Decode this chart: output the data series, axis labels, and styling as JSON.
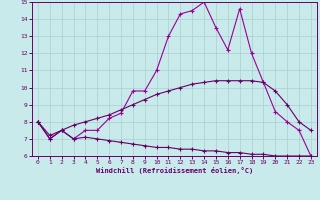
{
  "xlabel": "Windchill (Refroidissement éolien,°C)",
  "xlim": [
    -0.5,
    23.5
  ],
  "ylim": [
    6,
    15
  ],
  "xticks": [
    0,
    1,
    2,
    3,
    4,
    5,
    6,
    7,
    8,
    9,
    10,
    11,
    12,
    13,
    14,
    15,
    16,
    17,
    18,
    19,
    20,
    21,
    22,
    23
  ],
  "yticks": [
    6,
    7,
    8,
    9,
    10,
    11,
    12,
    13,
    14,
    15
  ],
  "background_color": "#c8eaea",
  "grid_color": "#aacfcf",
  "line_color": "#990099",
  "line_color2": "#660066",
  "line1_x": [
    0,
    1,
    2,
    3,
    4,
    5,
    6,
    7,
    8,
    9,
    10,
    11,
    12,
    13,
    14,
    15,
    16,
    17,
    18,
    19,
    20,
    21,
    22,
    23
  ],
  "line1_y": [
    8.0,
    7.0,
    7.5,
    7.0,
    7.5,
    7.5,
    8.2,
    8.5,
    9.8,
    9.8,
    11.0,
    13.0,
    14.3,
    14.5,
    15.0,
    13.5,
    12.2,
    14.6,
    12.0,
    10.3,
    8.6,
    8.0,
    7.5,
    6.0
  ],
  "line2_x": [
    0,
    1,
    2,
    3,
    4,
    5,
    6,
    7,
    8,
    9,
    10,
    11,
    12,
    13,
    14,
    15,
    16,
    17,
    18,
    19,
    20,
    21,
    22,
    23
  ],
  "line2_y": [
    8.0,
    7.2,
    7.5,
    7.8,
    8.0,
    8.2,
    8.4,
    8.7,
    9.0,
    9.3,
    9.6,
    9.8,
    10.0,
    10.2,
    10.3,
    10.4,
    10.4,
    10.4,
    10.4,
    10.3,
    9.8,
    9.0,
    8.0,
    7.5
  ],
  "line3_x": [
    0,
    1,
    2,
    3,
    4,
    5,
    6,
    7,
    8,
    9,
    10,
    11,
    12,
    13,
    14,
    15,
    16,
    17,
    18,
    19,
    20,
    21,
    22,
    23
  ],
  "line3_y": [
    8.0,
    7.0,
    7.5,
    7.0,
    7.1,
    7.0,
    6.9,
    6.8,
    6.7,
    6.6,
    6.5,
    6.5,
    6.4,
    6.4,
    6.3,
    6.3,
    6.2,
    6.2,
    6.1,
    6.1,
    6.0,
    6.0,
    6.0,
    6.0
  ]
}
